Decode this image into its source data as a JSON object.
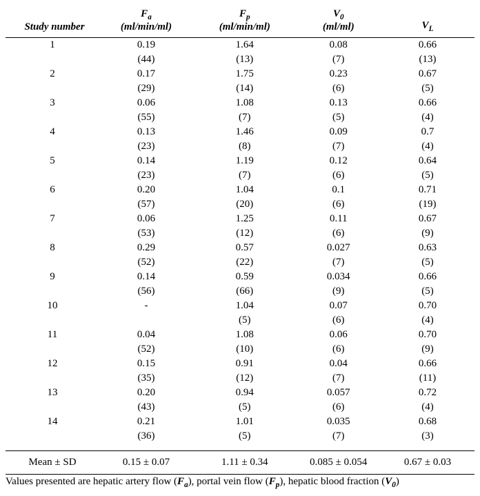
{
  "table": {
    "columns": [
      {
        "label_plain": "Study number",
        "unit": ""
      },
      {
        "symbol": "F",
        "sub": "a",
        "unit": "(ml/min/ml)"
      },
      {
        "symbol": "F",
        "sub": "p",
        "unit": "(ml/min/ml)"
      },
      {
        "symbol": "V",
        "sub": "0",
        "unit": "(ml/ml)"
      },
      {
        "symbol": "V",
        "sub": "L",
        "unit": ""
      }
    ],
    "col_widths_pct": [
      20,
      20,
      22,
      18,
      20
    ],
    "rows": [
      {
        "n": "1",
        "fa": "0.19",
        "fa_p": "(44)",
        "fp": "1.64",
        "fp_p": "(13)",
        "v0": "0.08",
        "v0_p": "(7)",
        "vl": "0.66",
        "vl_p": "(13)"
      },
      {
        "n": "2",
        "fa": "0.17",
        "fa_p": "(29)",
        "fp": "1.75",
        "fp_p": "(14)",
        "v0": "0.23",
        "v0_p": "(6)",
        "vl": "0.67",
        "vl_p": "(5)"
      },
      {
        "n": "3",
        "fa": "0.06",
        "fa_p": "(55)",
        "fp": "1.08",
        "fp_p": "(7)",
        "v0": "0.13",
        "v0_p": "(5)",
        "vl": "0.66",
        "vl_p": "(4)"
      },
      {
        "n": "4",
        "fa": "0.13",
        "fa_p": "(23)",
        "fp": "1.46",
        "fp_p": "(8)",
        "v0": "0.09",
        "v0_p": "(7)",
        "vl": "0.7",
        "vl_p": "(4)"
      },
      {
        "n": "5",
        "fa": "0.14",
        "fa_p": "(23)",
        "fp": "1.19",
        "fp_p": "(7)",
        "v0": "0.12",
        "v0_p": "(6)",
        "vl": "0.64",
        "vl_p": "(5)"
      },
      {
        "n": "6",
        "fa": "0.20",
        "fa_p": "(57)",
        "fp": "1.04",
        "fp_p": "(20)",
        "v0": "0.1",
        "v0_p": "(6)",
        "vl": "0.71",
        "vl_p": "(19)"
      },
      {
        "n": "7",
        "fa": "0.06",
        "fa_p": "(53)",
        "fp": "1.25",
        "fp_p": "(12)",
        "v0": "0.11",
        "v0_p": "(6)",
        "vl": "0.67",
        "vl_p": "(9)"
      },
      {
        "n": "8",
        "fa": "0.29",
        "fa_p": "(52)",
        "fp": "0.57",
        "fp_p": "(22)",
        "v0": "0.027",
        "v0_p": "(7)",
        "vl": "0.63",
        "vl_p": "(5)"
      },
      {
        "n": "9",
        "fa": "0.14",
        "fa_p": "(56)",
        "fp": "0.59",
        "fp_p": "(66)",
        "v0": "0.034",
        "v0_p": "(9)",
        "vl": "0.66",
        "vl_p": "(5)"
      },
      {
        "n": "10",
        "fa": "-",
        "fa_p": "",
        "fp": "1.04",
        "fp_p": "(5)",
        "v0": "0.07",
        "v0_p": "(6)",
        "vl": "0.70",
        "vl_p": "(4)"
      },
      {
        "n": "11",
        "fa": "0.04",
        "fa_p": "(52)",
        "fp": "1.08",
        "fp_p": "(10)",
        "v0": "0.06",
        "v0_p": "(6)",
        "vl": "0.70",
        "vl_p": "(9)"
      },
      {
        "n": "12",
        "fa": "0.15",
        "fa_p": "(35)",
        "fp": "0.91",
        "fp_p": "(12)",
        "v0": "0.04",
        "v0_p": "(7)",
        "vl": "0.66",
        "vl_p": "(11)"
      },
      {
        "n": "13",
        "fa": "0.20",
        "fa_p": "(43)",
        "fp": "0.94",
        "fp_p": "(5)",
        "v0": "0.057",
        "v0_p": "(6)",
        "vl": "0.72",
        "vl_p": "(4)"
      },
      {
        "n": "14",
        "fa": "0.21",
        "fa_p": "(36)",
        "fp": "1.01",
        "fp_p": "(5)",
        "v0": "0.035",
        "v0_p": "(7)",
        "vl": "0.68",
        "vl_p": "(3)"
      }
    ],
    "summary": {
      "label": "Mean ± SD",
      "fa": "0.15 ± 0.07",
      "fp": "1.11 ± 0.34",
      "v0": "0.085 ± 0.054",
      "vl": "0.67 ± 0.03"
    }
  },
  "caption_parts": {
    "t1": "Values presented are hepatic artery flow (",
    "c1s": "F",
    "c1sub": "a",
    "t2": "), portal vein flow (",
    "c2s": "F",
    "c2sub": "p",
    "t3": "), hepatic blood fraction (",
    "c3s": "V",
    "c3sub": "0",
    "t4": ")"
  },
  "style": {
    "font_family": "Times New Roman",
    "font_size_pt": 15,
    "background_color": "#ffffff",
    "text_color": "#000000",
    "rule_color": "#000000"
  }
}
